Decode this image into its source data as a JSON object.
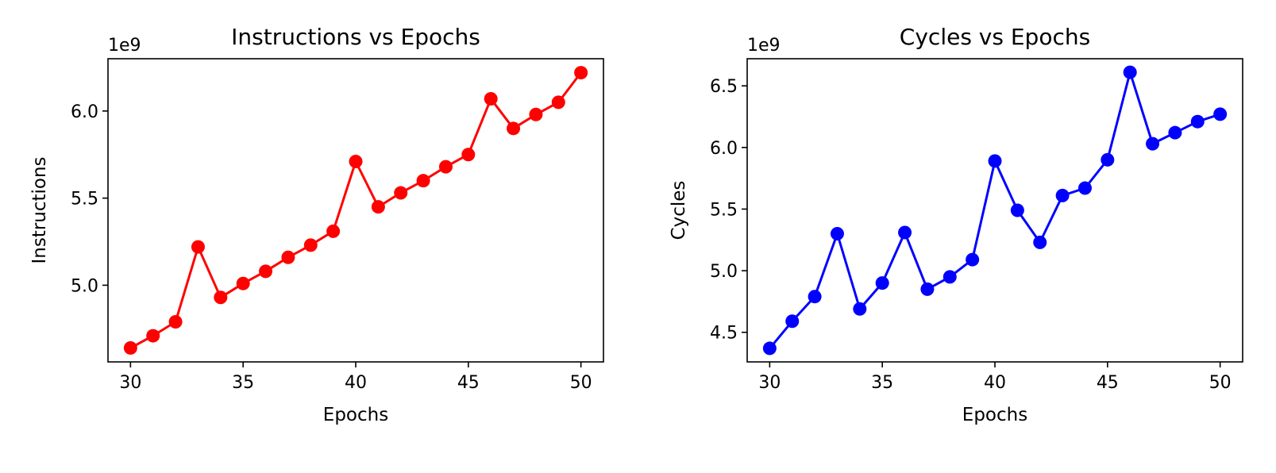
{
  "chart_data": [
    {
      "type": "line",
      "title": "Instructions vs Epochs",
      "xlabel": "Epochs",
      "ylabel": "Instructions",
      "offset_text": "1e9",
      "xlim": [
        29,
        51
      ],
      "ylim": [
        4.56,
        6.3
      ],
      "xticks": [
        30,
        35,
        40,
        45,
        50
      ],
      "xtick_labels": [
        "30",
        "35",
        "40",
        "45",
        "50"
      ],
      "yticks": [
        5.0,
        5.5,
        6.0
      ],
      "ytick_labels": [
        "5.0",
        "5.5",
        "6.0"
      ],
      "grid": false,
      "legend": "none",
      "series": [
        {
          "color": "#ff0000",
          "marker": "circle",
          "x": [
            30,
            31,
            32,
            33,
            34,
            35,
            36,
            37,
            38,
            39,
            40,
            41,
            42,
            43,
            44,
            45,
            46,
            47,
            48,
            49,
            50
          ],
          "y": [
            4.64,
            4.71,
            4.79,
            5.22,
            4.93,
            5.01,
            5.08,
            5.16,
            5.23,
            5.31,
            5.71,
            5.45,
            5.53,
            5.6,
            5.68,
            5.75,
            6.07,
            5.9,
            5.98,
            6.05,
            6.22
          ]
        }
      ]
    },
    {
      "type": "line",
      "title": "Cycles vs Epochs",
      "xlabel": "Epochs",
      "ylabel": "Cycles",
      "offset_text": "1e9",
      "xlim": [
        29,
        51
      ],
      "ylim": [
        4.26,
        6.72
      ],
      "xticks": [
        30,
        35,
        40,
        45,
        50
      ],
      "xtick_labels": [
        "30",
        "35",
        "40",
        "45",
        "50"
      ],
      "yticks": [
        4.5,
        5.0,
        5.5,
        6.0,
        6.5
      ],
      "ytick_labels": [
        "4.5",
        "5.0",
        "5.5",
        "6.0",
        "6.5"
      ],
      "grid": false,
      "legend": "none",
      "series": [
        {
          "color": "#0000ff",
          "marker": "circle",
          "x": [
            30,
            31,
            32,
            33,
            34,
            35,
            36,
            37,
            38,
            39,
            40,
            41,
            42,
            43,
            44,
            45,
            46,
            47,
            48,
            49,
            50
          ],
          "y": [
            4.37,
            4.59,
            4.79,
            5.3,
            4.69,
            4.9,
            5.31,
            4.85,
            4.95,
            5.09,
            5.89,
            5.49,
            5.23,
            5.61,
            5.67,
            5.9,
            6.61,
            6.03,
            6.12,
            6.21,
            6.27
          ]
        }
      ]
    }
  ]
}
